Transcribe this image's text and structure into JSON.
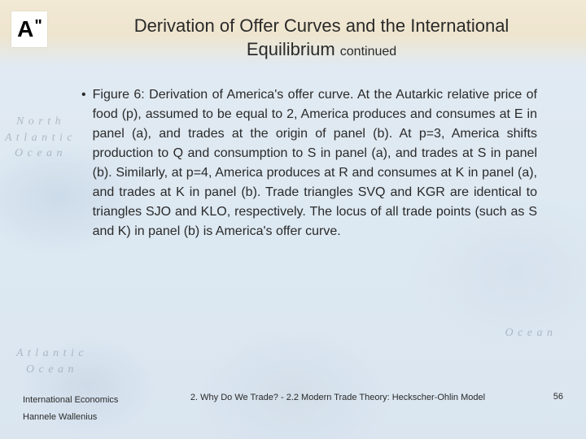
{
  "logo": {
    "letter": "A",
    "mark": "\""
  },
  "title": {
    "main": "Derivation of Offer Curves and the International Equilibrium ",
    "continued": "continued"
  },
  "bullet": {
    "marker": "•",
    "text": "Figure 6: Derivation of America's offer curve. At the Autarkic relative price of food (p), assumed to be equal to 2, America produces and consumes at E in panel (a), and trades at the origin of panel (b). At p=3, America shifts production to Q and consumption to S in panel (a), and trades at S in panel (b). Similarly, at p=4, America produces at R and consumes at K in panel (a), and trades at K in panel (b). Trade triangles SVQ and KGR are identical to triangles SJO and KLO, respectively. The locus of all trade points (such as S and K) in panel (b) is America's offer curve."
  },
  "footer": {
    "course": "International Economics",
    "author": "Hannele Wallenius",
    "chapter": "2. Why Do We Trade? - 2.2 Modern Trade Theory: Heckscher-Ohlin Model",
    "page": "56"
  },
  "map_labels": {
    "north_atlantic": "N o r t h\nA t l a n t i c\nO c e a n",
    "ocean1": "O c e a n",
    "atlantic": "A t l a n t i c\nO c e a n"
  },
  "colors": {
    "text": "#2a2a2a",
    "map_label": "#7a8a9a",
    "bg_top": "#f4e8d0",
    "bg_mid": "#e0eaf2",
    "logo_bg": "#ffffff"
  }
}
